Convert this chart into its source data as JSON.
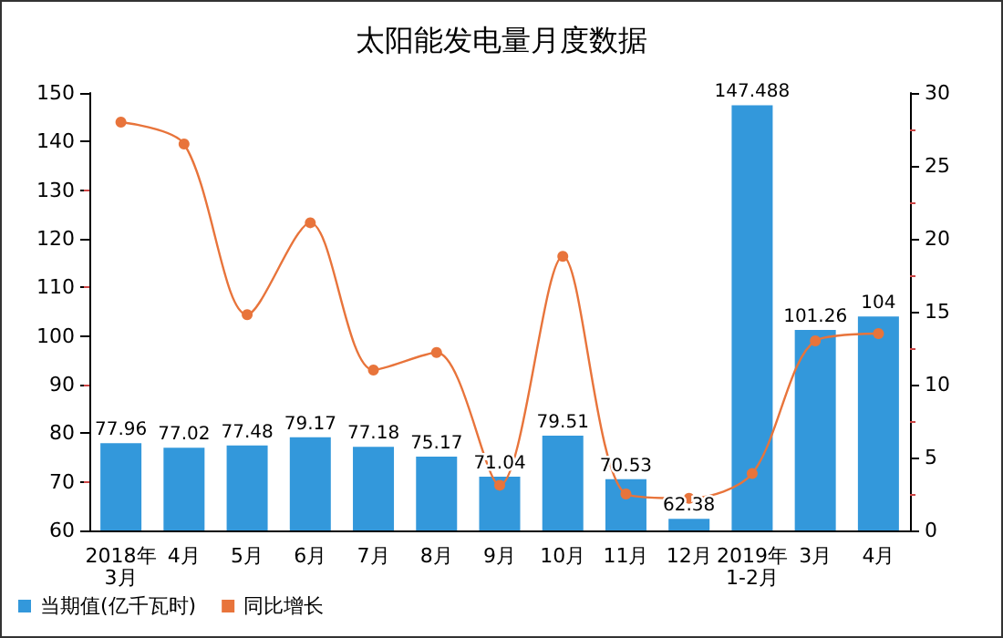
{
  "chart_data": {
    "type": "bar",
    "title": "太阳能发电量月度数据",
    "categories": [
      "2018年\n3月",
      "4月",
      "5月",
      "6月",
      "7月",
      "8月",
      "9月",
      "10月",
      "11月",
      "12月",
      "2019年\n1-2月",
      "3月",
      "4月"
    ],
    "series": [
      {
        "name": "当期值(亿千瓦时)",
        "color": "#3398db",
        "values": [
          77.96,
          77.02,
          77.48,
          79.17,
          77.18,
          75.17,
          71.04,
          79.51,
          70.53,
          62.38,
          147.488,
          101.26,
          104
        ],
        "value_labels": [
          "77.96",
          "77.02",
          "77.48",
          "79.17",
          "77.18",
          "75.17",
          "71.04",
          "79.51",
          "70.53",
          "62.38",
          "147.488",
          "101.26",
          "104"
        ]
      },
      {
        "name": "同比增长",
        "type": "line",
        "axis": "y2",
        "color": "#e8743b",
        "marker": "circle",
        "values": [
          28.0,
          26.5,
          14.8,
          21.1,
          11.0,
          12.2,
          3.1,
          18.8,
          2.5,
          2.2,
          3.9,
          13.0,
          13.5
        ]
      }
    ],
    "ylim": [
      60,
      150
    ],
    "yticks": [
      60,
      70,
      80,
      90,
      100,
      110,
      120,
      130,
      140,
      150
    ],
    "y2lim": [
      0,
      30
    ],
    "y2ticks": [
      0,
      5,
      10,
      15,
      20,
      25,
      30
    ],
    "grid": false,
    "legend": "bottom left"
  }
}
